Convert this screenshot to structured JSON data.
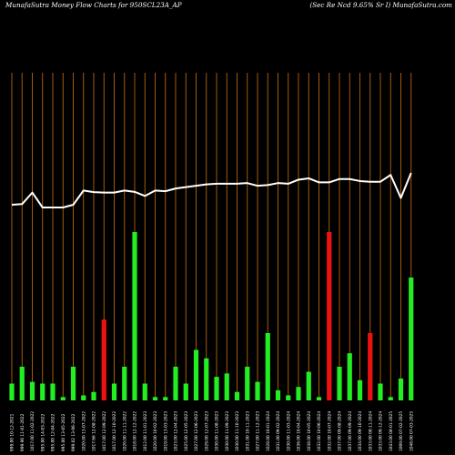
{
  "header": {
    "left_title": "MunafaSutra  Money Flow  Charts for 950SCL23A_AP",
    "right_title": "(Sec Re    Ncd 9.65% Sr I) MunafaSutra.com"
  },
  "colors": {
    "background": "#000000",
    "grid": "#b8640b",
    "up": "#22ee22",
    "down": "#ee1111",
    "price_line": "#ffffff",
    "text": "#ffffff"
  },
  "chart_data": {
    "type": "bar",
    "title": "MunafaSutra  Money Flow  Charts for 950SCL23A_AP",
    "subtitle": "(Sec Re    Ncd 9.65% Sr I) MunafaSutra.com",
    "grid": true,
    "categories": [
      "999.00 10-12-2021",
      "999.96 11-01-2022",
      "1017.00 11-02-2022",
      "995.00 14-03-2022",
      "995.00 12-04-2022",
      "995.00 13-05-2022",
      "999.02 13-06-2022",
      "1020.00 13-07-2022",
      "1017.66 12-08-2022",
      "1017.00 12-09-2022",
      "1017.00 12-10-2022",
      "1020.00 11-11-2022",
      "1018.00 12-12-2022",
      "1012.00 11-01-2023",
      "1020.00 10-02-2023",
      "1019.00 13-03-2023",
      "1023.00 12-04-2023",
      "1025.00 12-05-2023",
      "1027.00 12-06-2023",
      "1029.00 12-07-2023",
      "1030.00 11-08-2023",
      "1030.00 11-09-2023",
      "1030.00 11-10-2023",
      "1031.00 10-11-2023",
      "1027.00 11-12-2023",
      "1028.00 10-01-2024",
      "1031.00 09-02-2024",
      "1030.00 11-03-2024",
      "1036.00 10-04-2024",
      "1038.00 10-05-2024",
      "1032.00 10-06-2024",
      "1032.00 10-07-2024",
      "1037.00 09-08-2024",
      "1037.00 09-09-2024",
      "1034.00 09-10-2024",
      "1033.00 08-11-2024",
      "1033.00 09-12-2024",
      "1043.00 08-01-2025",
      "1009.00 07-02-2025",
      "1046.00 07-03-2025"
    ],
    "series": [
      {
        "values": [
          10,
          20,
          11,
          10,
          10,
          2,
          20,
          3,
          5,
          48,
          10,
          20,
          100,
          10,
          2,
          2,
          20,
          10,
          30,
          25,
          14,
          16,
          5,
          20,
          11,
          40,
          6,
          3,
          8,
          17,
          2,
          100,
          20,
          28,
          12,
          40,
          10,
          2,
          13,
          73
        ],
        "colors": [
          "green",
          "green",
          "green",
          "green",
          "green",
          "green",
          "green",
          "green",
          "green",
          "red",
          "green",
          "green",
          "green",
          "green",
          "green",
          "green",
          "green",
          "green",
          "green",
          "green",
          "green",
          "green",
          "green",
          "green",
          "green",
          "green",
          "green",
          "green",
          "green",
          "green",
          "green",
          "red",
          "green",
          "green",
          "green",
          "red",
          "green",
          "green",
          "green",
          "green"
        ]
      },
      {
        "values": [
          999.0,
          999.96,
          1017.0,
          995.0,
          995.0,
          995.0,
          999.02,
          1020.0,
          1017.66,
          1017.0,
          1017.0,
          1020.0,
          1018.0,
          1012.0,
          1020.0,
          1019.0,
          1023.0,
          1025.0,
          1027.0,
          1029.0,
          1030.0,
          1030.0,
          1030.0,
          1031.0,
          1027.0,
          1028.0,
          1031.0,
          1030.0,
          1036.0,
          1038.0,
          1032.0,
          1032.0,
          1037.0,
          1037.0,
          1034.0,
          1033.0,
          1033.0,
          1043.0,
          1009.0,
          1046.0
        ]
      }
    ]
  }
}
